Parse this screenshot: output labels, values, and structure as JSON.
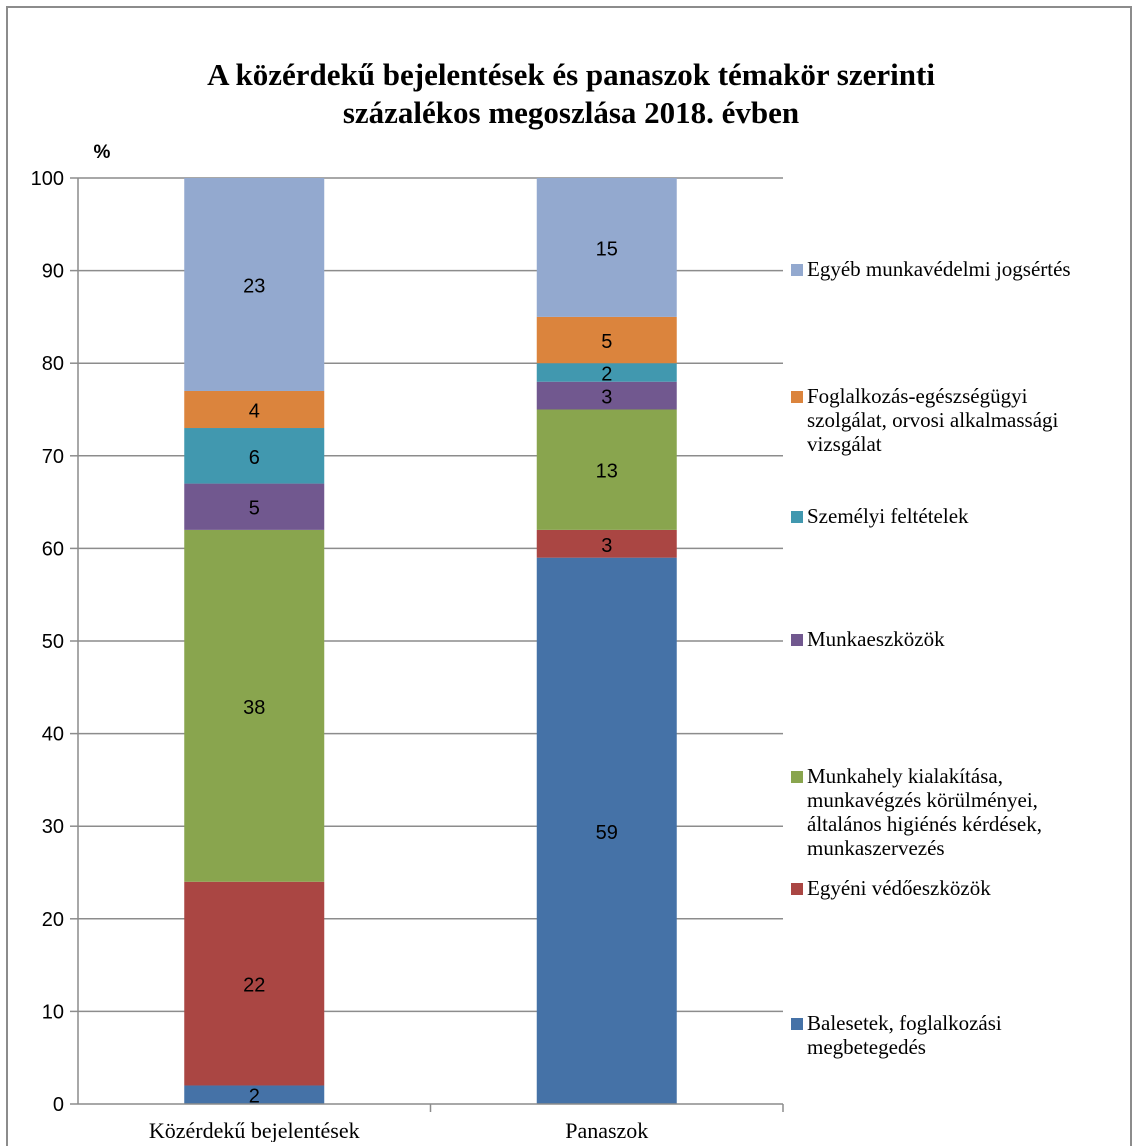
{
  "chart_data": {
    "type": "bar",
    "stacked": true,
    "title_lines": [
      "A közérdekű bejelentések és panaszok témakör szerinti",
      "százalékos megoszlása 2018.  évben"
    ],
    "ylabel": "%",
    "ylim": [
      0,
      100
    ],
    "yticks": [
      0,
      10,
      20,
      30,
      40,
      50,
      60,
      70,
      80,
      90,
      100
    ],
    "grid": true,
    "legend_position": "right",
    "categories": [
      "Közérdekű bejelentések",
      "Panaszok"
    ],
    "series": [
      {
        "name": "Balesetek, foglalkozási megbetegedés",
        "legend_lines": [
          "Balesetek, foglalkozási",
          "megbetegedés"
        ],
        "color": "#4572a7",
        "values": [
          2,
          59
        ]
      },
      {
        "name": "Egyéni védőeszközök",
        "legend_lines": [
          "Egyéni védőeszközök"
        ],
        "color": "#aa4643",
        "values": [
          22,
          3
        ]
      },
      {
        "name": "Munkahely kialakítása, munkavégzés körülményei, általános higiénés kérdések, munkaszervezés",
        "legend_lines": [
          "Munkahely kialakítása,",
          "munkavégzés körülményei,",
          "általános higiénés kérdések,",
          "munkaszervezés"
        ],
        "color": "#89a54e",
        "values": [
          38,
          13
        ]
      },
      {
        "name": "Munkaeszközök",
        "legend_lines": [
          "Munkaeszközök"
        ],
        "color": "#71588f",
        "values": [
          5,
          3
        ]
      },
      {
        "name": "Személyi feltételek",
        "legend_lines": [
          "Személyi feltételek"
        ],
        "color": "#4198af",
        "values": [
          6,
          2
        ]
      },
      {
        "name": "Foglalkozás-egészségügyi szolgálat, orvosi alkalmassági vizsgálat",
        "legend_lines": [
          "Foglalkozás-egészségügyi",
          "szolgálat, orvosi alkalmassági",
          "vizsgálat"
        ],
        "color": "#db843d",
        "values": [
          4,
          5
        ]
      },
      {
        "name": "Egyéb munkavédelmi jogsértés",
        "legend_lines": [
          "Egyéb munkavédelmi jogsértés"
        ],
        "color": "#93a9cf",
        "values": [
          23,
          15
        ]
      }
    ]
  }
}
